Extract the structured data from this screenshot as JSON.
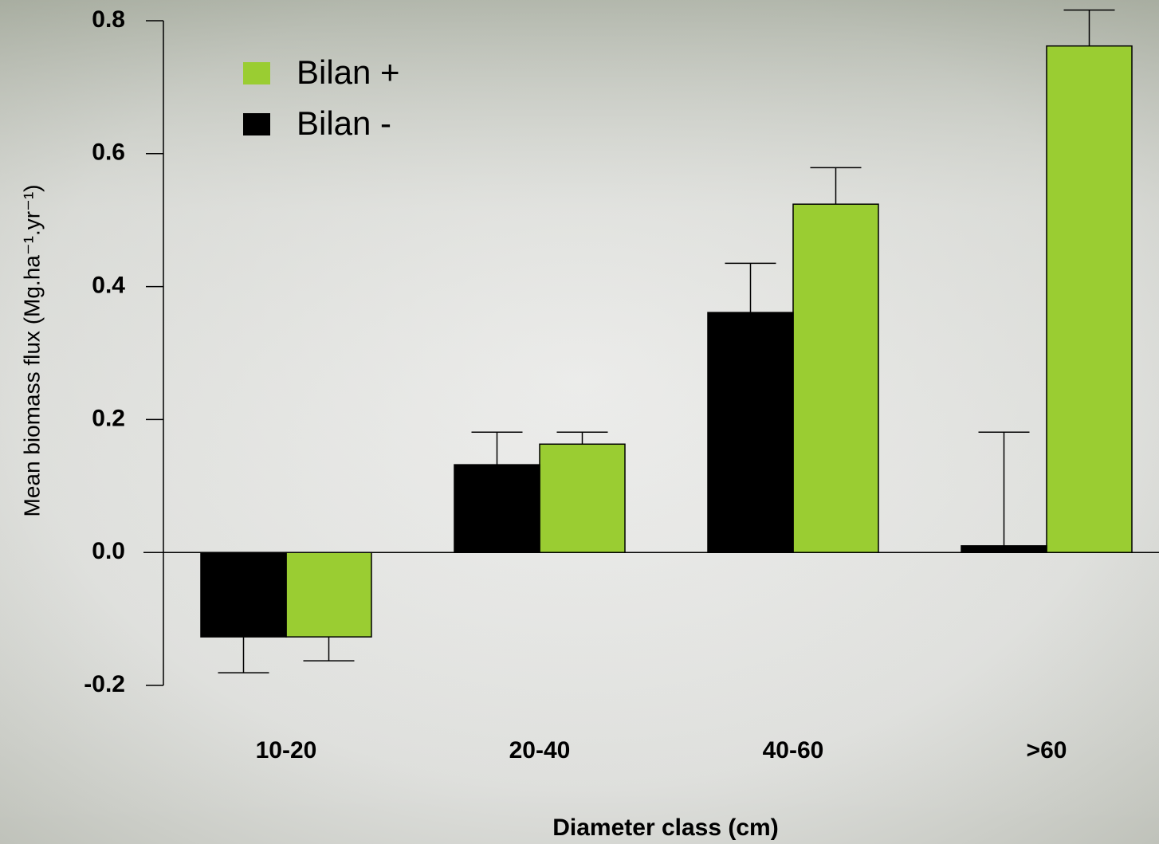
{
  "chart_data": {
    "type": "bar",
    "y_label": "Mean biomass flux (Mg.ha⁻¹.yr⁻¹)",
    "x_label": "Diameter class (cm)",
    "categories": [
      "10-20",
      "20-40",
      "40-60",
      ">60"
    ],
    "series": [
      {
        "name": "Bilan +",
        "color": "#9acd32",
        "values": [
          -0.127,
          0.163,
          0.524,
          0.762
        ],
        "errors": [
          0.036,
          0.018,
          0.055,
          0.054
        ]
      },
      {
        "name": "Bilan -",
        "color": "#000000",
        "values": [
          -0.127,
          0.132,
          0.361,
          0.01
        ],
        "errors": [
          0.054,
          0.049,
          0.074,
          0.171
        ]
      }
    ],
    "ylim": [
      -0.2,
      0.8
    ],
    "yticks": [
      -0.2,
      {
        "value": 0,
        "label": "0.0"
      },
      0.2,
      0.4,
      0.6,
      0.8
    ],
    "legend": "top-left"
  }
}
